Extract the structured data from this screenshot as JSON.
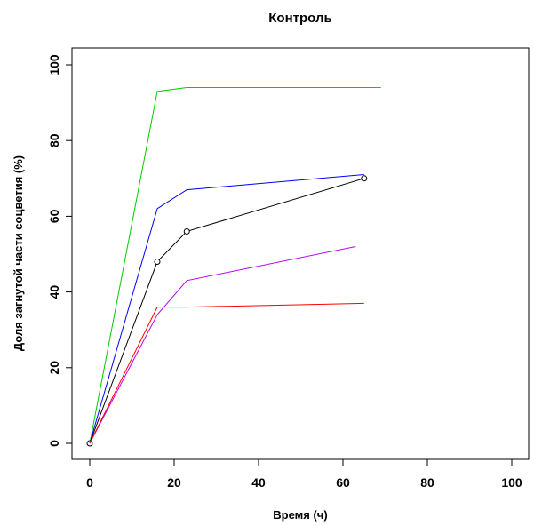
{
  "chart_data": {
    "type": "line",
    "title": "Контроль",
    "xlabel": "Время (ч)",
    "ylabel": "Доля загнутой части соцветия (%)",
    "xlim": [
      0,
      100
    ],
    "ylim": [
      0,
      100
    ],
    "xticks": [
      0,
      20,
      40,
      60,
      80,
      100
    ],
    "yticks": [
      0,
      20,
      40,
      60,
      80,
      100
    ],
    "tick_labels_x": [
      "0",
      "20",
      "40",
      "60",
      "80",
      "100"
    ],
    "tick_labels_y": [
      "0",
      "20",
      "40",
      "60",
      "80",
      "100"
    ],
    "grid": false,
    "legend": "none",
    "series": [
      {
        "color": "#00cc00",
        "markers": false,
        "points": [
          [
            0,
            0
          ],
          [
            16,
            93
          ],
          [
            23,
            94
          ],
          [
            69,
            94
          ]
        ]
      },
      {
        "color": "#0000ff",
        "markers": false,
        "points": [
          [
            0,
            0
          ],
          [
            16,
            62
          ],
          [
            23,
            67
          ],
          [
            65,
            71
          ]
        ]
      },
      {
        "color": "#000000",
        "markers": true,
        "points": [
          [
            0,
            0
          ],
          [
            16,
            48
          ],
          [
            23,
            56
          ],
          [
            65,
            70
          ]
        ]
      },
      {
        "color": "#bb00ff",
        "markers": false,
        "points": [
          [
            0,
            0
          ],
          [
            16,
            34
          ],
          [
            23,
            43
          ],
          [
            63,
            52
          ]
        ]
      },
      {
        "color": "#ff0000",
        "markers": false,
        "points": [
          [
            0,
            0
          ],
          [
            16,
            36
          ],
          [
            23,
            36
          ],
          [
            65,
            37
          ]
        ]
      }
    ]
  }
}
